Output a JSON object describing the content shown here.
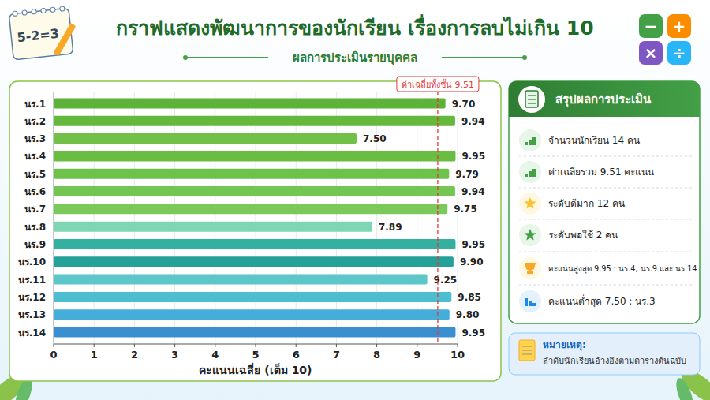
{
  "chart_data": {
    "type": "bar",
    "orientation": "horizontal",
    "title": "กราฟแสดงพัฒนาการของนักเรียน เรื่องการลบไม่เกิน 10",
    "subtitle": "ผลการประเมินรายบุคคล",
    "x_label": "คะแนนเฉลี่ย (เต็ม 10)",
    "categories": [
      "นร.1",
      "นร.2",
      "นร.3",
      "นร.4",
      "นร.5",
      "นร.6",
      "นร.7",
      "นร.8",
      "นร.9",
      "นร.10",
      "นร.11",
      "นร.12",
      "นร.13",
      "นร.14"
    ],
    "values": [
      9.7,
      9.94,
      7.5,
      9.95,
      9.79,
      9.94,
      9.75,
      7.89,
      9.95,
      9.9,
      9.25,
      9.85,
      9.8,
      9.95
    ],
    "value_labels": [
      "9.70",
      "9.94",
      "7.50",
      "9.95",
      "9.79",
      "9.94",
      "9.75",
      "7.89",
      "9.95",
      "9.90",
      "9.25",
      "9.85",
      "9.80",
      "9.95"
    ],
    "colors": [
      "#5cb338",
      "#64b83c",
      "#72c047",
      "#69bd41",
      "#6cc24a",
      "#74c653",
      "#7bc95b",
      "#7fd6b5",
      "#33b0a0",
      "#26a19a",
      "#5cc6c9",
      "#4dbed0",
      "#45add9",
      "#3a8fd0"
    ],
    "xlim": [
      0,
      10
    ],
    "xticks": [
      0,
      1,
      2,
      3,
      4,
      5,
      6,
      7,
      8,
      9,
      10
    ],
    "grid": true,
    "data_labels": true,
    "mean_line": {
      "value": 9.51,
      "label": "ค่าเฉลี่ยทั้งชั้น 9.51",
      "color": "#e53935"
    }
  },
  "badge": "5-2=3",
  "math_symbols": [
    "−",
    "+",
    "×",
    "÷"
  ],
  "summary": {
    "title": "สรุปผลการประเมิน",
    "items": [
      "จำนวนนักเรียน 14 คน",
      "ค่าเฉลี่ยรวม 9.51 คะแนน",
      "ระดับดีมาก 12 คน",
      "ระดับพอใช้ 2 คน",
      "คะแนนสูงสุด 9.95 : นร.4, นร.9 และ นร.14",
      "คะแนนต่ำสุด 7.50 : นร.3"
    ]
  },
  "note": {
    "title": "หมายเหตุ:",
    "text": "ลำดับนักเรียนอ้างอิงตามตารางต้นฉบับ"
  }
}
